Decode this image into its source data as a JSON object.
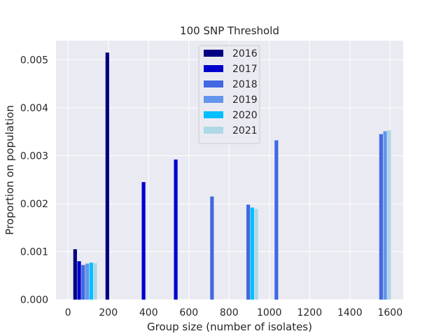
{
  "chart_data": {
    "type": "bar",
    "title": "100 SNP Threshold",
    "xlabel": "Group size (number of isolates)",
    "ylabel": "Proportion on population",
    "xlim": [
      -60,
      1665
    ],
    "ylim": [
      0,
      0.0054
    ],
    "grid": true,
    "legend_position": "top-center",
    "x_ticks": [
      "0",
      "200",
      "400",
      "600",
      "800",
      "1000",
      "1200",
      "1400",
      "1600"
    ],
    "y_ticks": [
      "0.000",
      "0.001",
      "0.002",
      "0.003",
      "0.004",
      "0.005"
    ],
    "series": [
      {
        "name": "2016",
        "color": "#000080",
        "points": [
          {
            "x": 35,
            "y": 0.00105
          },
          {
            "x": 195,
            "y": 0.00515
          }
        ]
      },
      {
        "name": "2017",
        "color": "#0000CD",
        "points": [
          {
            "x": 55,
            "y": 0.0008
          },
          {
            "x": 375,
            "y": 0.00245
          },
          {
            "x": 535,
            "y": 0.00292
          }
        ]
      },
      {
        "name": "2018",
        "color": "#4169E1",
        "points": [
          {
            "x": 75,
            "y": 0.00072
          },
          {
            "x": 715,
            "y": 0.00215
          },
          {
            "x": 895,
            "y": 0.00198
          },
          {
            "x": 1035,
            "y": 0.00332
          },
          {
            "x": 1555,
            "y": 0.00345
          }
        ]
      },
      {
        "name": "2019",
        "color": "#6495ED",
        "points": [
          {
            "x": 95,
            "y": 0.00075
          },
          {
            "x": 1575,
            "y": 0.00351
          }
        ]
      },
      {
        "name": "2020",
        "color": "#00BFFF",
        "points": [
          {
            "x": 115,
            "y": 0.00077
          },
          {
            "x": 915,
            "y": 0.00192
          }
        ]
      },
      {
        "name": "2021",
        "color": "#ADD8E6",
        "points": [
          {
            "x": 135,
            "y": 0.00076
          },
          {
            "x": 935,
            "y": 0.00189
          },
          {
            "x": 1595,
            "y": 0.00353
          }
        ]
      }
    ]
  }
}
